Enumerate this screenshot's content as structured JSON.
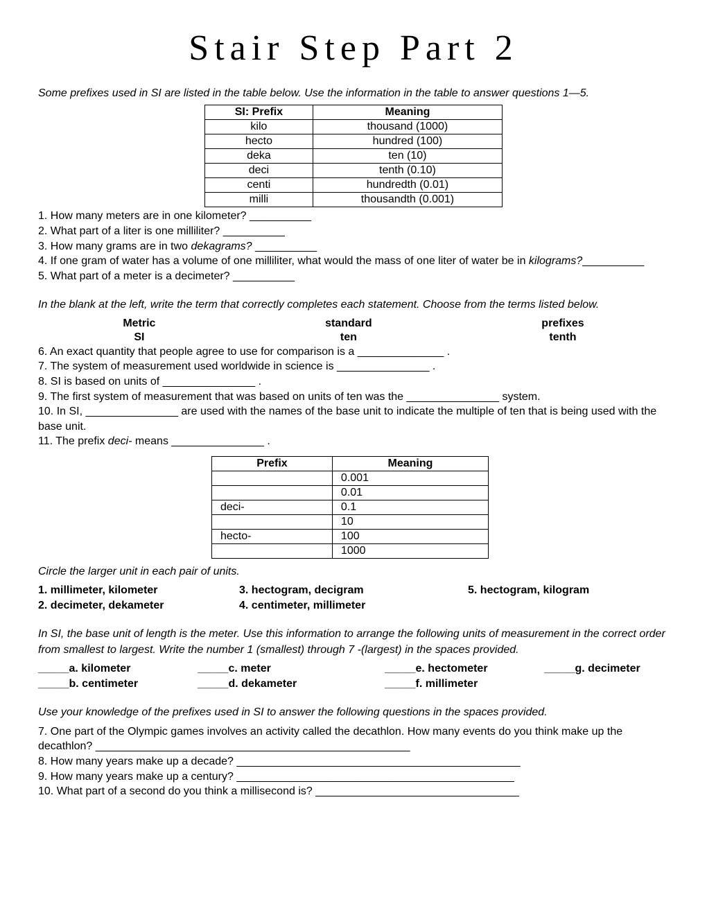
{
  "title": "Stair Step Part 2",
  "intro": "Some prefixes used in SI are listed in the table below. Use the information in the table to answer questions 1—5.",
  "table1": {
    "headers": [
      "SI: Prefix",
      "Meaning"
    ],
    "rows": [
      [
        "kilo",
        "thousand (1000)"
      ],
      [
        "hecto",
        "hundred (100)"
      ],
      [
        "deka",
        "ten (10)"
      ],
      [
        "deci",
        "tenth (0.10)"
      ],
      [
        "centi",
        "hundredth (0.01)"
      ],
      [
        "milli",
        "thousandth (0.001)"
      ]
    ]
  },
  "q1": "1. How many meters are in one kilometer? __________",
  "q2": "2. What part of a liter is one milliliter? __________",
  "q3a": "3. How many grams are in two ",
  "q3b": "dekagrams? ",
  "q3c": "__________",
  "q4a": "4. If one gram of water has a volume of one milliliter, what would the mass of one liter of water be in ",
  "q4b": "kilograms?",
  "q4c": "__________",
  "q5": "5. What part of a meter is a decimeter? __________",
  "instr2": "In the blank at the left, write the term that correctly completes each statement. Choose from the terms listed below.",
  "words": {
    "c1a": "Metric",
    "c1b": "SI",
    "c2a": "standard",
    "c2b": "ten",
    "c3a": "prefixes",
    "c3b": "tenth"
  },
  "q6": "6. An exact quantity that people agree to use for comparison is a ______________ .",
  "q7": "7. The system of measurement used worldwide in science is _______________ .",
  "q8": "8. SI is based on units of _______________ .",
  "q9": "9. The first system of measurement that was based on units of ten was the _______________ system.",
  "q10": "10. In SI, _______________ are used with the names of the base unit to indicate the multiple of ten that is being used with the base unit.",
  "q11a": "11. The prefix ",
  "q11b": "deci-",
  "q11c": " means _______________ .",
  "table2": {
    "headers": [
      "Prefix",
      "Meaning"
    ],
    "rows": [
      [
        "",
        "0.001"
      ],
      [
        "",
        "0.01"
      ],
      [
        "deci-",
        "0.1"
      ],
      [
        "",
        "10"
      ],
      [
        "hecto-",
        "100"
      ],
      [
        "",
        "1000"
      ]
    ]
  },
  "circleInstr": "Circle the larger unit in each pair of units.",
  "pairs": {
    "p1": "1. millimeter, kilometer",
    "p2": "2. decimeter, dekameter",
    "p3": "3. hectogram, decigram",
    "p4": "4. centimeter, millimeter",
    "p5": "5. hectogram, kilogram"
  },
  "orderInstr": "In SI, the base unit of length is the meter. Use this information to arrange the following units of measurement in the correct order from smallest to largest. Write the number 1 (smallest) through 7 -(largest) in the spaces provided.",
  "order": {
    "a": "a. kilometer",
    "b": "b. centimeter",
    "c": "c. meter",
    "d": "d. dekameter",
    "e": "e. hectometer",
    "f": "f. millimeter",
    "g": "g. decimeter"
  },
  "finalInstr": "Use your knowledge of the prefixes used in SI to answer the following questions in the spaces provided.",
  "fq7": "7. One part of the Olympic games involves an activity called the decathlon. How many events do you think make up the decathlon? ___________________________________________________",
  "fq8": "8. How many years make up a decade? ______________________________________________",
  "fq9": "9. How many years make up a century? _____________________________________________",
  "fq10": "10. What part of a second do you think a millisecond is? _________________________________"
}
